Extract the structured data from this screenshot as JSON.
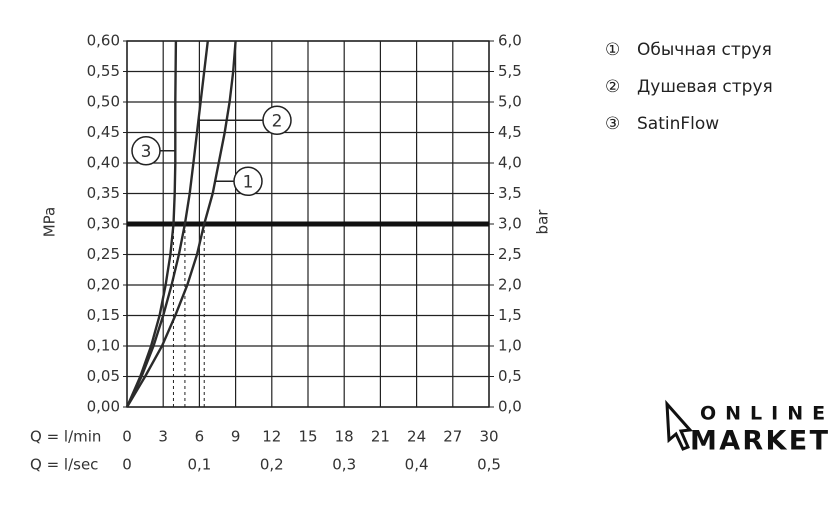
{
  "chart_data": {
    "type": "line",
    "y_label": "MPa",
    "y2_label": "bar",
    "x_label": "Q = l/min",
    "x2_label": "Q = l/sec",
    "xlim": [
      0,
      30
    ],
    "xticks": [
      0,
      3,
      6,
      9,
      12,
      15,
      18,
      21,
      24,
      27,
      30
    ],
    "x2lim": [
      0,
      0.5
    ],
    "x2ticks": [
      0,
      {
        "value": 0.1,
        "label": "0,1"
      },
      {
        "value": 0.2,
        "label": "0,2"
      },
      {
        "value": 0.3,
        "label": "0,3"
      },
      {
        "value": 0.4,
        "label": "0,4"
      },
      {
        "value": 0.5,
        "label": "0,5"
      }
    ],
    "ylim": [
      0,
      0.6
    ],
    "yticks": [
      {
        "value": 0,
        "label": "0,00"
      },
      {
        "value": 0.05,
        "label": "0,05"
      },
      {
        "value": 0.1,
        "label": "0,10"
      },
      {
        "value": 0.15,
        "label": "0,15"
      },
      {
        "value": 0.2,
        "label": "0,20"
      },
      {
        "value": 0.25,
        "label": "0,25"
      },
      {
        "value": 0.3,
        "label": "0,30"
      },
      {
        "value": 0.35,
        "label": "0,35"
      },
      {
        "value": 0.4,
        "label": "0,40"
      },
      {
        "value": 0.45,
        "label": "0,45"
      },
      {
        "value": 0.5,
        "label": "0,50"
      },
      {
        "value": 0.55,
        "label": "0,55"
      },
      {
        "value": 0.6,
        "label": "0,60"
      }
    ],
    "y2lim": [
      0,
      6
    ],
    "y2ticks": [
      {
        "value": 0,
        "label": "0,0"
      },
      {
        "value": 0.5,
        "label": "0,5"
      },
      {
        "value": 1,
        "label": "1,0"
      },
      {
        "value": 1.5,
        "label": "1,5"
      },
      {
        "value": 2,
        "label": "2,0"
      },
      {
        "value": 2.5,
        "label": "2,5"
      },
      {
        "value": 3,
        "label": "3,0"
      },
      {
        "value": 3.5,
        "label": "3,5"
      },
      {
        "value": 4,
        "label": "4,0"
      },
      {
        "value": 4.5,
        "label": "4,5"
      },
      {
        "value": 5,
        "label": "5,0"
      },
      {
        "value": 5.5,
        "label": "5,5"
      },
      {
        "value": 6,
        "label": "6,0"
      }
    ],
    "grid": true,
    "reference_line": 0.3,
    "series": [
      {
        "name": "Обычная струя",
        "legend_symbol": "①",
        "label": "1",
        "color": "#2b2b2b",
        "x": [
          0,
          1.5,
          2.9,
          4.0,
          5.0,
          5.8,
          6.4,
          7.1,
          7.6,
          8.1,
          8.5,
          8.8,
          9.0
        ],
        "values": [
          0,
          0.05,
          0.1,
          0.15,
          0.2,
          0.25,
          0.3,
          0.35,
          0.4,
          0.45,
          0.5,
          0.55,
          0.6
        ]
      },
      {
        "name": "Душевая струя",
        "legend_symbol": "②",
        "label": "2",
        "color": "#2b2b2b",
        "x": [
          0,
          1.2,
          2.2,
          3.0,
          3.7,
          4.3,
          4.8,
          5.2,
          5.5,
          5.8,
          6.1,
          6.4,
          6.7
        ],
        "values": [
          0,
          0.05,
          0.1,
          0.15,
          0.2,
          0.25,
          0.3,
          0.35,
          0.4,
          0.45,
          0.5,
          0.55,
          0.6
        ]
      },
      {
        "name": "SatinFlow",
        "legend_symbol": "③",
        "label": "3",
        "color": "#2b2b2b",
        "x": [
          0,
          1.1,
          2.0,
          2.7,
          3.2,
          3.6,
          3.85,
          3.95,
          4.0,
          4.0,
          4.05
        ],
        "values": [
          0,
          0.05,
          0.1,
          0.15,
          0.2,
          0.25,
          0.3,
          0.35,
          0.4,
          0.5,
          0.6
        ]
      }
    ]
  },
  "watermark": {
    "top": "ONLINE",
    "bottom": "MARKET"
  }
}
